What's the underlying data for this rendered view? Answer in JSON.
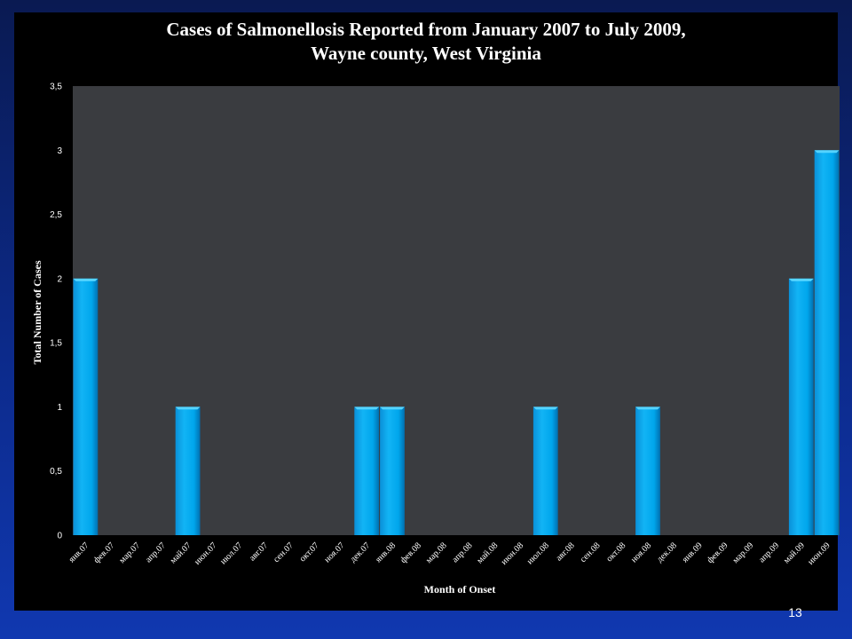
{
  "slide": {
    "slide_number": "13"
  },
  "colors": {
    "plot_background": "#3a3c40",
    "bar_fill": "#00aaee",
    "bar_highlight": "#55d4ff",
    "bar_shadow": "#0070b0",
    "text": "#ffffff",
    "page_background": "#0c2a8a"
  },
  "chart_data": {
    "type": "bar",
    "title": "Cases of Salmonellosis Reported  from January 2007 to July 2009,",
    "subtitle": "Wayne county, West Virginia",
    "xlabel": "Month of Onset",
    "ylabel": "Total Number of Cases",
    "ylim": [
      0,
      3.5
    ],
    "yticks": [
      "0",
      "0,5",
      "1",
      "1,5",
      "2",
      "2,5",
      "3",
      "3,5"
    ],
    "grid": false,
    "legend": "none",
    "categories": [
      "янв.07",
      "фев.07",
      "мар.07",
      "апр.07",
      "май.07",
      "июн.07",
      "июл.07",
      "авг.07",
      "сен.07",
      "окт.07",
      "ноя.07",
      "дек.07",
      "янв.08",
      "фев.08",
      "мар.08",
      "апр.08",
      "май.08",
      "июн.08",
      "июл.08",
      "авг.08",
      "сен.08",
      "окт.08",
      "ноя.08",
      "дек.08",
      "янв.09",
      "фев.09",
      "мар.09",
      "апр.09",
      "май.09",
      "июн.09"
    ],
    "values": [
      2,
      0,
      0,
      0,
      1,
      0,
      0,
      0,
      0,
      0,
      0,
      1,
      1,
      0,
      0,
      0,
      0,
      0,
      1,
      0,
      0,
      0,
      1,
      0,
      0,
      0,
      0,
      0,
      2,
      3
    ]
  }
}
